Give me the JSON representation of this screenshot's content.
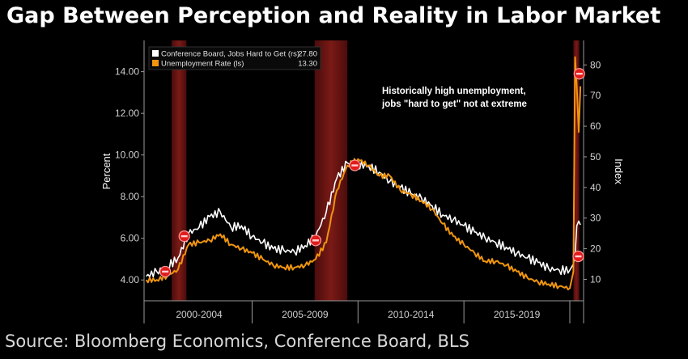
{
  "title": "Gap Between Perception and Reality in Labor Market",
  "source": "Source: Bloomberg Economics, Conference Board, BLS",
  "chart_data": {
    "type": "line",
    "left_axis": {
      "label": "Percent",
      "ylim": [
        3.0,
        15.5
      ],
      "ticks": [
        "4.00",
        "6.00",
        "8.00",
        "10.00",
        "12.00",
        "14.00"
      ]
    },
    "right_axis": {
      "label": "Index",
      "ylim": [
        3.0,
        88.0
      ],
      "ticks": [
        "10",
        "20",
        "30",
        "40",
        "50",
        "60",
        "70",
        "80"
      ]
    },
    "x_labels": [
      "2000-2004",
      "2005-2009",
      "2010-2014",
      "2015-2019"
    ],
    "xlim": [
      1999.9,
      2020.65
    ],
    "recessions": [
      [
        2001.2,
        2001.9
      ],
      [
        2007.95,
        2009.5
      ],
      [
        2020.17,
        2020.45
      ]
    ],
    "legend": {
      "placement": "top-left"
    },
    "annotation": [
      "Historically high unemployment,",
      "jobs \"hard to get\" not at extreme"
    ],
    "series": [
      {
        "name": "Conference Board, Jobs Hard to Get (rs)",
        "last_value": "27.80",
        "axis": "right",
        "color": "#ffffff",
        "x": [
          2000.0,
          2000.5,
          2001.0,
          2001.5,
          2002.0,
          2002.5,
          2003.0,
          2003.5,
          2004.0,
          2004.5,
          2005.0,
          2005.5,
          2006.0,
          2006.5,
          2007.0,
          2007.5,
          2008.0,
          2008.5,
          2009.0,
          2009.5,
          2010.0,
          2010.5,
          2011.0,
          2011.5,
          2012.0,
          2012.5,
          2013.0,
          2013.5,
          2014.0,
          2014.5,
          2015.0,
          2015.5,
          2016.0,
          2016.5,
          2017.0,
          2017.5,
          2018.0,
          2018.5,
          2019.0,
          2019.5,
          2020.0,
          2020.17,
          2020.25,
          2020.33,
          2020.42,
          2020.5
        ],
        "values": [
          11.0,
          12.5,
          14.0,
          17.0,
          25.0,
          27.0,
          30.5,
          32.0,
          27.0,
          27.5,
          24.0,
          22.0,
          20.0,
          19.5,
          19.0,
          21.0,
          24.0,
          32.0,
          43.0,
          48.0,
          47.5,
          47.0,
          45.0,
          42.0,
          40.0,
          38.0,
          36.5,
          34.0,
          31.0,
          29.5,
          27.5,
          25.5,
          23.5,
          22.0,
          20.5,
          18.5,
          17.0,
          15.5,
          13.5,
          13.0,
          13.0,
          15.0,
          18.0,
          27.5,
          29.0,
          27.8
        ]
      },
      {
        "name": "Unemployment Rate (ls)",
        "last_value": "13.30",
        "axis": "left",
        "color": "#f0950f",
        "x": [
          2000.0,
          2000.5,
          2001.0,
          2001.5,
          2002.0,
          2002.5,
          2003.0,
          2003.5,
          2004.0,
          2004.5,
          2005.0,
          2005.5,
          2006.0,
          2006.5,
          2007.0,
          2007.5,
          2008.0,
          2008.5,
          2009.0,
          2009.5,
          2010.0,
          2010.5,
          2011.0,
          2011.5,
          2012.0,
          2012.5,
          2013.0,
          2013.5,
          2014.0,
          2014.5,
          2015.0,
          2015.5,
          2016.0,
          2016.5,
          2017.0,
          2017.5,
          2018.0,
          2018.5,
          2019.0,
          2019.5,
          2020.0,
          2020.17,
          2020.25,
          2020.33,
          2020.42,
          2020.5
        ],
        "values": [
          4.0,
          4.0,
          4.2,
          4.5,
          5.7,
          5.8,
          5.9,
          6.2,
          5.7,
          5.5,
          5.3,
          5.0,
          4.7,
          4.6,
          4.6,
          4.7,
          5.0,
          5.8,
          8.3,
          9.5,
          9.8,
          9.5,
          9.0,
          9.0,
          8.3,
          8.1,
          7.8,
          7.4,
          6.7,
          6.1,
          5.7,
          5.3,
          4.9,
          4.9,
          4.7,
          4.4,
          4.1,
          3.9,
          3.8,
          3.7,
          3.6,
          4.4,
          14.7,
          13.3,
          11.1,
          13.3
        ]
      }
    ],
    "markers": [
      {
        "series_index": 1,
        "x": 2000.9,
        "y": 4.4
      },
      {
        "series_index": 1,
        "x": 2001.8,
        "y": 6.1
      },
      {
        "series_index": 1,
        "x": 2008.0,
        "y": 5.9
      },
      {
        "series_index": 1,
        "x": 2009.85,
        "y": 9.5
      },
      {
        "series_index": 1,
        "x": 2020.45,
        "y": 13.9
      },
      {
        "series_index": 0,
        "x": 2020.4,
        "y": 17.5
      }
    ]
  }
}
